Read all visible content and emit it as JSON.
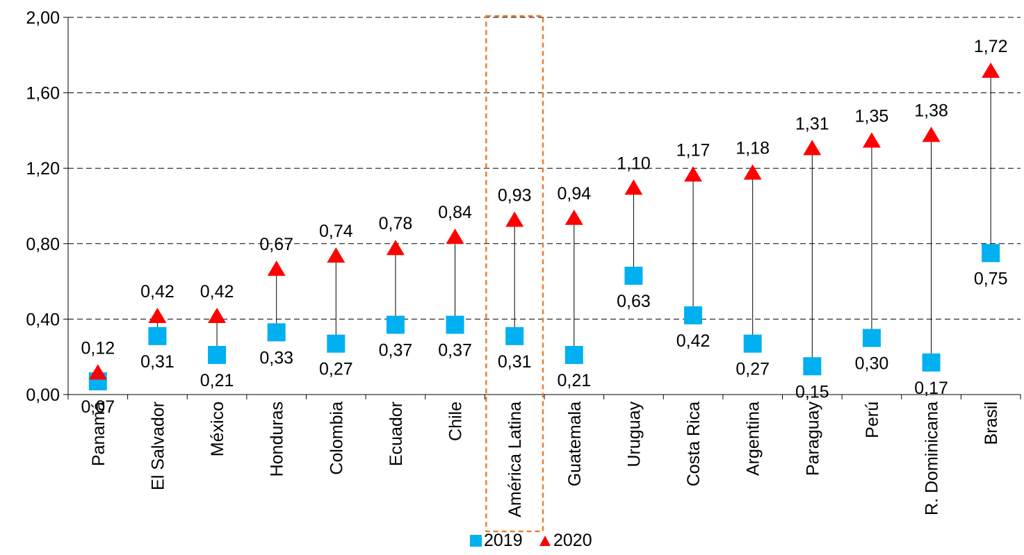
{
  "chart_data": {
    "type": "scatter",
    "categories": [
      "Panamá",
      "El Salvador",
      "México",
      "Honduras",
      "Colombia",
      "Ecuador",
      "Chile",
      "América Latina",
      "Guatemala",
      "Uruguay",
      "Costa Rica",
      "Argentina",
      "Paraguay",
      "Perú",
      "R. Dominicana",
      "Brasil"
    ],
    "series": [
      {
        "name": "2019",
        "marker": "square",
        "color": "#00B0F0",
        "values": [
          0.07,
          0.31,
          0.21,
          0.33,
          0.27,
          0.37,
          0.37,
          0.31,
          0.21,
          0.63,
          0.42,
          0.27,
          0.15,
          0.3,
          0.17,
          0.75
        ],
        "labels": [
          "0,07",
          "0,31",
          "0,21",
          "0,33",
          "0,27",
          "0,37",
          "0,37",
          "0,31",
          "0,21",
          "0,63",
          "0,42",
          "0,27",
          "0,15",
          "0,30",
          "0,17",
          "0,75"
        ]
      },
      {
        "name": "2020",
        "marker": "triangle",
        "color": "#FF0000",
        "values": [
          0.12,
          0.42,
          0.42,
          0.67,
          0.74,
          0.78,
          0.84,
          0.93,
          0.94,
          1.1,
          1.17,
          1.18,
          1.31,
          1.35,
          1.38,
          1.72
        ],
        "labels": [
          "0,12",
          "0,42",
          "0,42",
          "0,67",
          "0,74",
          "0,78",
          "0,84",
          "0,93",
          "0,94",
          "1,10",
          "1,17",
          "1,18",
          "1,31",
          "1,35",
          "1,38",
          "1,72"
        ]
      }
    ],
    "ylim": [
      0,
      2
    ],
    "yticks": [
      0,
      0.4,
      0.8,
      1.2,
      1.6,
      2.0
    ],
    "ytick_labels": [
      "0,00",
      "0,40",
      "0,80",
      "1,20",
      "1,60",
      "2,00"
    ],
    "grid": "horizontal dashed",
    "legend_position": "bottom-center",
    "highlight_category": "América Latina",
    "highlight_color": "#ED7D31",
    "title": "",
    "xlabel": "",
    "ylabel": ""
  }
}
